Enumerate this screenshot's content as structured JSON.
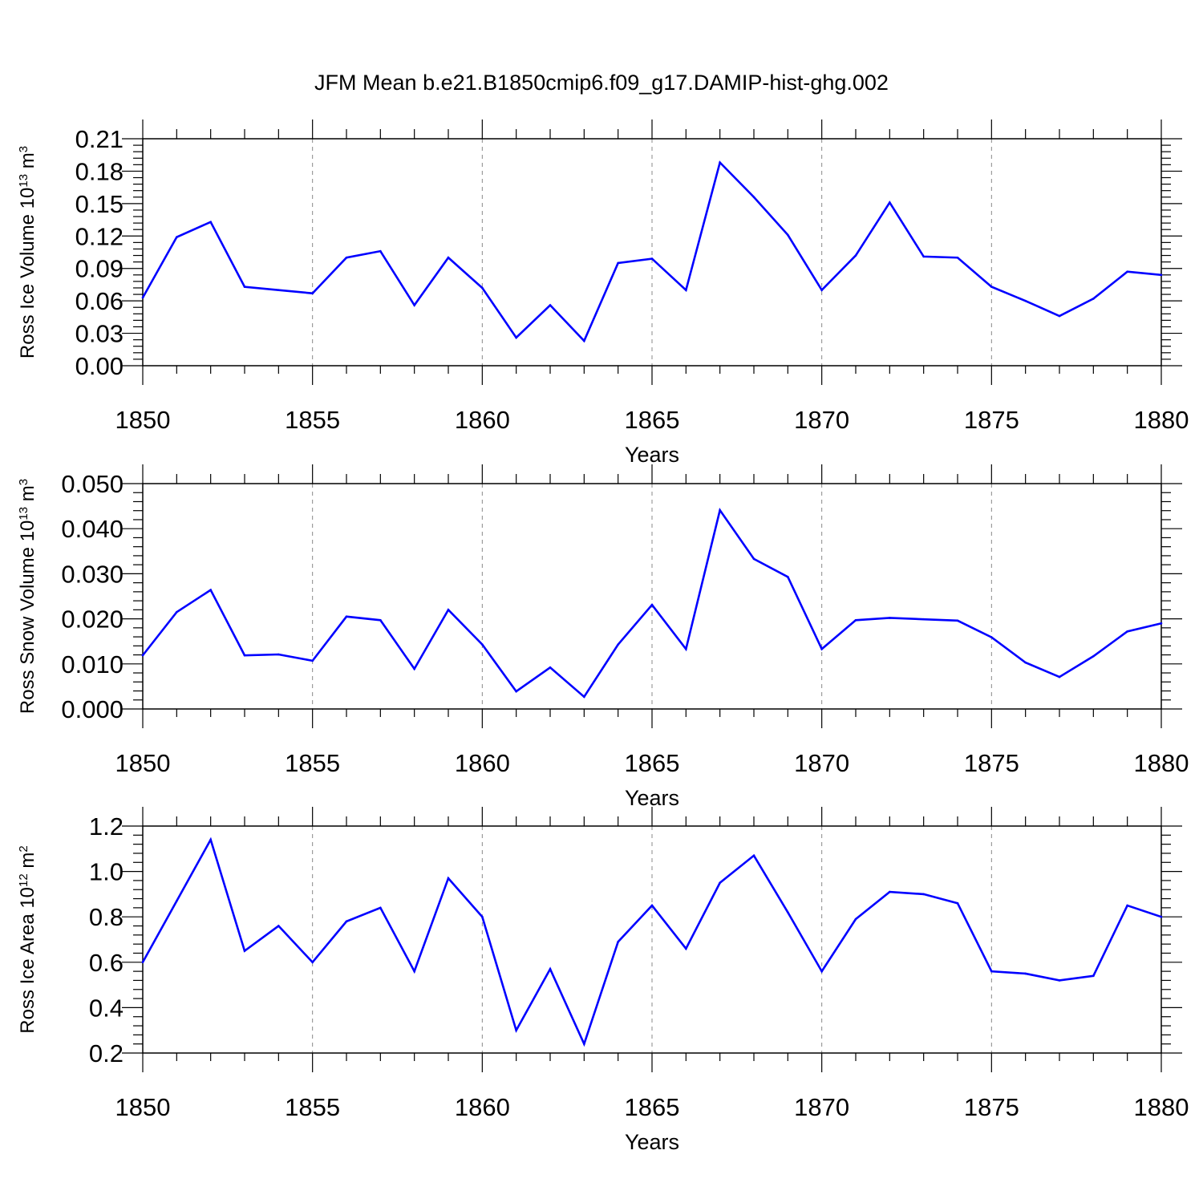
{
  "title": "JFM Mean b.e21.B1850cmip6.f09_g17.DAMIP-hist-ghg.002",
  "colors": {
    "series": "#0000ff",
    "grid": "#888888",
    "axis": "#000000"
  },
  "chart_data": [
    {
      "type": "line",
      "xlabel": "Years",
      "ylabel": {
        "base": "Ross Ice Volume 10",
        "exp": "13",
        "unit": " m",
        "unit_exp": "3"
      },
      "xlim": [
        1850,
        1880
      ],
      "ylim": [
        0,
        0.21
      ],
      "xticks": [
        1850,
        1855,
        1860,
        1865,
        1870,
        1875,
        1880
      ],
      "yticks": [
        "0.00",
        "0.03",
        "0.06",
        "0.09",
        "0.12",
        "0.15",
        "0.18",
        "0.21"
      ],
      "grid": "vertical dashed at major x ticks",
      "x": [
        1850,
        1851,
        1852,
        1853,
        1854,
        1855,
        1856,
        1857,
        1858,
        1859,
        1860,
        1861,
        1862,
        1863,
        1864,
        1865,
        1866,
        1867,
        1868,
        1869,
        1870,
        1871,
        1872,
        1873,
        1874,
        1875,
        1876,
        1877,
        1878,
        1879,
        1880
      ],
      "values": [
        0.063,
        0.119,
        0.133,
        0.073,
        0.07,
        0.067,
        0.1,
        0.106,
        0.056,
        0.1,
        0.072,
        0.026,
        0.056,
        0.023,
        0.095,
        0.099,
        0.07,
        0.188,
        0.156,
        0.121,
        0.07,
        0.102,
        0.151,
        0.101,
        0.1,
        0.073,
        0.06,
        0.046,
        0.062,
        0.087,
        0.084
      ]
    },
    {
      "type": "line",
      "xlabel": "Years",
      "ylabel": {
        "base": "Ross Snow Volume 10",
        "exp": "13",
        "unit": " m",
        "unit_exp": "3"
      },
      "xlim": [
        1850,
        1880
      ],
      "ylim": [
        0,
        0.05
      ],
      "xticks": [
        1850,
        1855,
        1860,
        1865,
        1870,
        1875,
        1880
      ],
      "yticks": [
        "0.000",
        "0.010",
        "0.020",
        "0.030",
        "0.040",
        "0.050"
      ],
      "grid": "vertical dashed at major x ticks",
      "x": [
        1850,
        1851,
        1852,
        1853,
        1854,
        1855,
        1856,
        1857,
        1858,
        1859,
        1860,
        1861,
        1862,
        1863,
        1864,
        1865,
        1866,
        1867,
        1868,
        1869,
        1870,
        1871,
        1872,
        1873,
        1874,
        1875,
        1876,
        1877,
        1878,
        1879,
        1880
      ],
      "values": [
        0.0119,
        0.0215,
        0.0264,
        0.0119,
        0.0121,
        0.0107,
        0.0205,
        0.0197,
        0.0089,
        0.022,
        0.0143,
        0.0039,
        0.0092,
        0.0027,
        0.0143,
        0.0231,
        0.0133,
        0.0441,
        0.0333,
        0.0293,
        0.0133,
        0.0197,
        0.0202,
        0.0199,
        0.0196,
        0.0159,
        0.0103,
        0.0071,
        0.0117,
        0.0172,
        0.019
      ]
    },
    {
      "type": "line",
      "xlabel": "Years",
      "ylabel": {
        "base": "Ross Ice Area 10",
        "exp": "12",
        "unit": " m",
        "unit_exp": "2"
      },
      "xlim": [
        1850,
        1880
      ],
      "ylim": [
        0.2,
        1.2
      ],
      "xticks": [
        1850,
        1855,
        1860,
        1865,
        1870,
        1875,
        1880
      ],
      "yticks": [
        "0.2",
        "0.4",
        "0.6",
        "0.8",
        "1.0",
        "1.2"
      ],
      "grid": "vertical dashed at major x ticks",
      "x": [
        1850,
        1851,
        1852,
        1853,
        1854,
        1855,
        1856,
        1857,
        1858,
        1859,
        1860,
        1861,
        1862,
        1863,
        1864,
        1865,
        1866,
        1867,
        1868,
        1869,
        1870,
        1871,
        1872,
        1873,
        1874,
        1875,
        1876,
        1877,
        1878,
        1879,
        1880
      ],
      "values": [
        0.6,
        0.87,
        1.14,
        0.65,
        0.76,
        0.6,
        0.78,
        0.84,
        0.56,
        0.97,
        0.8,
        0.3,
        0.57,
        0.24,
        0.69,
        0.85,
        0.66,
        0.95,
        1.07,
        0.82,
        0.56,
        0.79,
        0.91,
        0.9,
        0.86,
        0.56,
        0.55,
        0.52,
        0.54,
        0.85,
        0.8
      ]
    }
  ]
}
